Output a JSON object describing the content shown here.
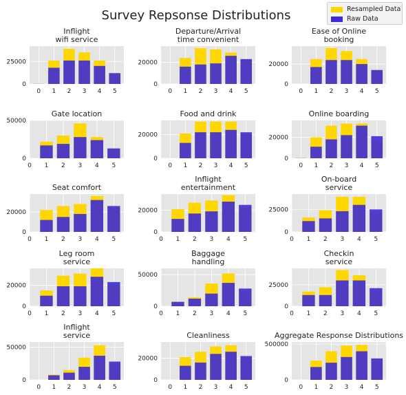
{
  "figure_title": "Survey Repsonse Distributions",
  "colors": {
    "resampled": "#ffd700",
    "raw": "#3c2bd6",
    "panel_bg": "#e5e5e5",
    "grid": "#ffffff"
  },
  "legend": {
    "placement": "top-right",
    "items": [
      "Resampled Data",
      "Raw Data"
    ]
  },
  "chart_data": [
    {
      "type": "bar",
      "title": "Inflight\nwifi service",
      "categories": [
        0,
        1,
        2,
        3,
        4,
        5
      ],
      "xticks": [
        0,
        1,
        2,
        3,
        4,
        5
      ],
      "yticks": [
        0,
        25000
      ],
      "yticklabels": [
        "0",
        "25000"
      ],
      "ylim": [
        0,
        42000
      ],
      "series": [
        {
          "name": "Resampled Data",
          "values": [
            120,
            26000,
            39000,
            35000,
            26000,
            12000
          ]
        },
        {
          "name": "Raw Data",
          "values": [
            100,
            18000,
            26000,
            26000,
            20000,
            12000
          ]
        }
      ]
    },
    {
      "type": "bar",
      "title": "Departure/Arrival\ntime convenient",
      "categories": [
        0,
        1,
        2,
        3,
        4,
        5
      ],
      "xticks": [
        0,
        1,
        2,
        3,
        4,
        5
      ],
      "yticks": [
        0,
        20000
      ],
      "yticklabels": [
        "0",
        "20000"
      ],
      "ylim": [
        0,
        35000
      ],
      "series": [
        {
          "name": "Resampled Data",
          "values": [
            0,
            24000,
            33000,
            32000,
            29000,
            22000
          ]
        },
        {
          "name": "Raw Data",
          "values": [
            0,
            16000,
            18000,
            19000,
            26000,
            23000
          ]
        }
      ]
    },
    {
      "type": "bar",
      "title": "Ease of Online\nbooking",
      "categories": [
        0,
        1,
        2,
        3,
        4,
        5
      ],
      "xticks": [
        0,
        1,
        2,
        3,
        4,
        5
      ],
      "yticks": [
        0,
        20000
      ],
      "yticklabels": [
        "0",
        "20000"
      ],
      "ylim": [
        0,
        38000
      ],
      "series": [
        {
          "name": "Resampled Data",
          "values": [
            0,
            25000,
            36000,
            33000,
            25000,
            14000
          ]
        },
        {
          "name": "Raw Data",
          "values": [
            0,
            17000,
            24000,
            24000,
            20000,
            14000
          ]
        }
      ]
    },
    {
      "type": "bar",
      "title": "Gate location",
      "categories": [
        0,
        1,
        2,
        3,
        4,
        5
      ],
      "xticks": [
        0,
        1,
        2,
        3,
        4,
        5
      ],
      "yticks": [
        0,
        50000
      ],
      "yticklabels": [
        "0",
        "50000"
      ],
      "ylim": [
        0,
        50000
      ],
      "series": [
        {
          "name": "Resampled Data",
          "values": [
            0,
            22000,
            30000,
            46000,
            28000,
            12000
          ]
        },
        {
          "name": "Raw Data",
          "values": [
            0,
            17000,
            19000,
            28000,
            24000,
            13000
          ]
        }
      ]
    },
    {
      "type": "bar",
      "title": "Food and drink",
      "categories": [
        0,
        1,
        2,
        3,
        4,
        5
      ],
      "xticks": [
        0,
        1,
        2,
        3,
        4,
        5
      ],
      "yticks": [
        0,
        20000
      ],
      "yticklabels": [
        "0",
        "20000"
      ],
      "ylim": [
        0,
        32000
      ],
      "series": [
        {
          "name": "Resampled Data",
          "values": [
            0,
            21000,
            31000,
            31000,
            31000,
            21000
          ]
        },
        {
          "name": "Raw Data",
          "values": [
            0,
            13000,
            22000,
            22000,
            24000,
            22000
          ]
        }
      ]
    },
    {
      "type": "bar",
      "title": "Online boarding",
      "categories": [
        0,
        1,
        2,
        3,
        4,
        5
      ],
      "xticks": [
        0,
        1,
        2,
        3,
        4,
        5
      ],
      "yticks": [
        0,
        20000
      ],
      "yticklabels": [
        "0",
        "20000"
      ],
      "ylim": [
        0,
        36000
      ],
      "series": [
        {
          "name": "Resampled Data",
          "values": [
            300,
            20000,
            31000,
            33000,
            33000,
            17000
          ]
        },
        {
          "name": "Raw Data",
          "values": [
            100,
            11000,
            18000,
            22000,
            31000,
            21000
          ]
        }
      ]
    },
    {
      "type": "bar",
      "title": "Seat comfort",
      "categories": [
        0,
        1,
        2,
        3,
        4,
        5
      ],
      "xticks": [
        0,
        1,
        2,
        3,
        4,
        5
      ],
      "yticks": [
        0,
        20000
      ],
      "yticklabels": [
        "0",
        "20000"
      ],
      "ylim": [
        0,
        38000
      ],
      "series": [
        {
          "name": "Resampled Data",
          "values": [
            0,
            22000,
            26000,
            28000,
            36000,
            24000
          ]
        },
        {
          "name": "Raw Data",
          "values": [
            0,
            12000,
            15000,
            18000,
            32000,
            26000
          ]
        }
      ]
    },
    {
      "type": "bar",
      "title": "Inflight\nentertainment",
      "categories": [
        0,
        1,
        2,
        3,
        4,
        5
      ],
      "xticks": [
        0,
        1,
        2,
        3,
        4,
        5
      ],
      "yticks": [
        0,
        20000
      ],
      "yticklabels": [
        "0",
        "20000"
      ],
      "ylim": [
        0,
        35000
      ],
      "series": [
        {
          "name": "Resampled Data",
          "values": [
            0,
            21000,
            27000,
            29000,
            34000,
            23000
          ]
        },
        {
          "name": "Raw Data",
          "values": [
            0,
            12000,
            17000,
            19000,
            28000,
            25000
          ]
        }
      ]
    },
    {
      "type": "bar",
      "title": "On-board\nservice",
      "categories": [
        0,
        1,
        2,
        3,
        4,
        5
      ],
      "xticks": [
        0,
        1,
        2,
        3,
        4,
        5
      ],
      "yticks": [
        0,
        25000
      ],
      "yticklabels": [
        "0",
        "25000"
      ],
      "ylim": [
        0,
        42000
      ],
      "series": [
        {
          "name": "Resampled Data",
          "values": [
            0,
            16000,
            24000,
            39000,
            39000,
            21000
          ]
        },
        {
          "name": "Raw Data",
          "values": [
            0,
            12000,
            15000,
            23000,
            30000,
            25000
          ]
        }
      ]
    },
    {
      "type": "bar",
      "title": "Leg room\nservice",
      "categories": [
        0,
        1,
        2,
        3,
        4,
        5
      ],
      "xticks": [
        0,
        1,
        2,
        3,
        4,
        5
      ],
      "yticks": [
        0,
        20000
      ],
      "yticklabels": [
        "0",
        "20000"
      ],
      "ylim": [
        0,
        36000
      ],
      "series": [
        {
          "name": "Resampled Data",
          "values": [
            0,
            15000,
            29000,
            31000,
            36000,
            20000
          ]
        },
        {
          "name": "Raw Data",
          "values": [
            0,
            10000,
            19000,
            19000,
            28000,
            23000
          ]
        }
      ]
    },
    {
      "type": "bar",
      "title": "Baggage\nhandling",
      "categories": [
        0,
        1,
        2,
        3,
        4,
        5
      ],
      "xticks": [
        0,
        1,
        2,
        3,
        4,
        5
      ],
      "yticks": [
        0,
        50000
      ],
      "yticklabels": [
        "0",
        "50000"
      ],
      "ylim": [
        0,
        60000
      ],
      "series": [
        {
          "name": "Resampled Data",
          "values": [
            0,
            7000,
            14000,
            36000,
            52000,
            24000
          ]
        },
        {
          "name": "Raw Data",
          "values": [
            0,
            7000,
            12000,
            20000,
            37000,
            28000
          ]
        }
      ]
    },
    {
      "type": "bar",
      "title": "Checkin\nservice",
      "categories": [
        0,
        1,
        2,
        3,
        4,
        5
      ],
      "xticks": [
        0,
        1,
        2,
        3,
        4,
        5
      ],
      "yticks": [
        0,
        25000
      ],
      "yticklabels": [
        "0",
        "25000"
      ],
      "ylim": [
        0,
        44000
      ],
      "series": [
        {
          "name": "Resampled Data",
          "values": [
            0,
            17000,
            22000,
            42000,
            36000,
            18000
          ]
        },
        {
          "name": "Raw Data",
          "values": [
            0,
            13000,
            13000,
            30000,
            30000,
            21000
          ]
        }
      ]
    },
    {
      "type": "bar",
      "title": "Inflight\nservice",
      "categories": [
        0,
        1,
        2,
        3,
        4,
        5
      ],
      "xticks": [
        0,
        1,
        2,
        3,
        4,
        5
      ],
      "yticks": [
        0,
        50000
      ],
      "yticklabels": [
        "0",
        "50000"
      ],
      "ylim": [
        0,
        58000
      ],
      "series": [
        {
          "name": "Resampled Data",
          "values": [
            0,
            8000,
            15000,
            34000,
            53000,
            24000
          ]
        },
        {
          "name": "Raw Data",
          "values": [
            0,
            7000,
            11000,
            20000,
            37000,
            28000
          ]
        }
      ]
    },
    {
      "type": "bar",
      "title": "Cleanliness",
      "categories": [
        0,
        1,
        2,
        3,
        4,
        5
      ],
      "xticks": [
        0,
        1,
        2,
        3,
        4,
        5
      ],
      "yticks": [
        0,
        20000
      ],
      "yticklabels": [
        "0",
        "20000"
      ],
      "ylim": [
        0,
        35000
      ],
      "series": [
        {
          "name": "Resampled Data",
          "values": [
            0,
            21000,
            26000,
            31000,
            32000,
            21000
          ]
        },
        {
          "name": "Raw Data",
          "values": [
            0,
            13000,
            16000,
            24000,
            26000,
            22000
          ]
        }
      ]
    },
    {
      "type": "bar",
      "title": "Aggregate Response Distributions",
      "categories": [
        0,
        1,
        2,
        3,
        4,
        5
      ],
      "xticks": [
        0,
        1,
        2,
        3,
        4,
        5
      ],
      "yticks": [
        0,
        500000
      ],
      "yticklabels": [
        "0",
        "500000"
      ],
      "ylim": [
        0,
        530000
      ],
      "series": [
        {
          "name": "Resampled Data",
          "values": [
            0,
            270000,
            400000,
            480000,
            490000,
            280000
          ]
        },
        {
          "name": "Raw Data",
          "values": [
            0,
            180000,
            240000,
            320000,
            400000,
            300000
          ]
        }
      ]
    }
  ]
}
